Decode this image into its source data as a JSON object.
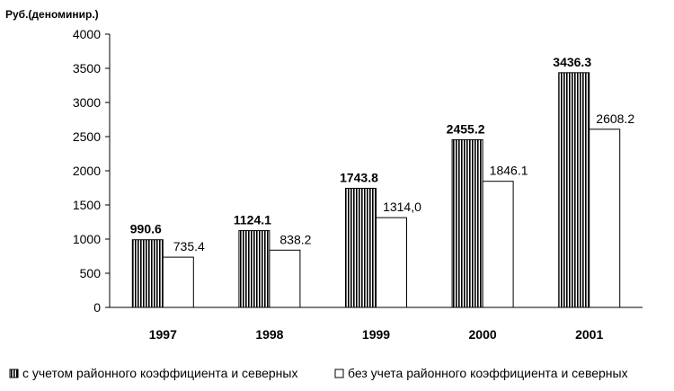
{
  "chart_data": {
    "type": "bar",
    "title": "",
    "ylabel": "Руб.(деноминир.)",
    "xlabel": "",
    "categories": [
      "1997",
      "1998",
      "1999",
      "2000",
      "2001"
    ],
    "ylim": [
      0,
      4000
    ],
    "yticks": [
      0,
      500,
      1000,
      1500,
      2000,
      2500,
      3000,
      3500,
      4000
    ],
    "grid": false,
    "legend_position": "bottom",
    "series": [
      {
        "name": "с учетом районного коэффициента и северных",
        "pattern": "vertical-stripes",
        "values": [
          990.6,
          1124.1,
          1743.8,
          2455.2,
          3436.3
        ],
        "labels": [
          "990.6",
          "1124.1",
          "1743.8",
          "2455.2",
          "3436.3"
        ]
      },
      {
        "name": "без учета районного коэффициента и северных",
        "pattern": "white",
        "values": [
          735.4,
          838.2,
          1314.0,
          1846.1,
          2608.2
        ],
        "labels": [
          "735.4",
          "838.2",
          "1314,0",
          "1846.1",
          "2608.2"
        ]
      }
    ]
  }
}
